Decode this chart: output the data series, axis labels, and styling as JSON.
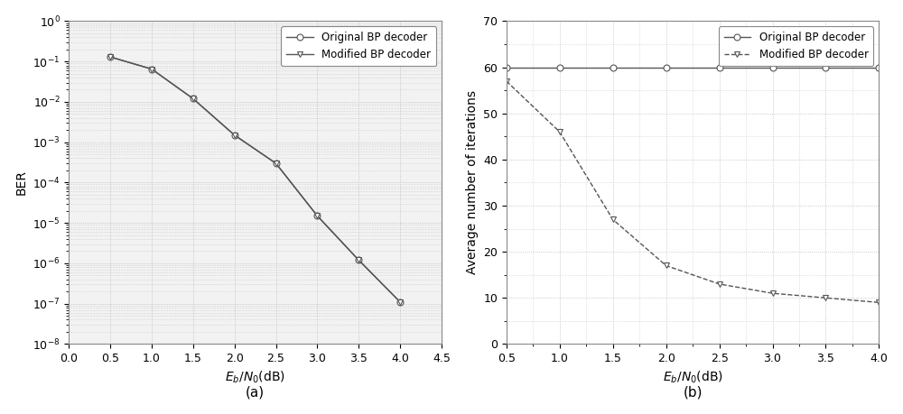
{
  "plot_a": {
    "x": [
      0.5,
      1.0,
      1.5,
      2.0,
      2.5,
      3.0,
      3.5,
      4.0
    ],
    "y_original": [
      0.13,
      0.065,
      0.012,
      0.0015,
      0.0003,
      1.5e-05,
      1.2e-06,
      1.1e-07
    ],
    "y_modified": [
      0.13,
      0.065,
      0.012,
      0.0015,
      0.0003,
      1.5e-05,
      1.2e-06,
      1.1e-07
    ],
    "xlabel": "$E_b/N_0$(dB)",
    "ylabel": "BER",
    "xlim": [
      0,
      4.5
    ],
    "ylim_log": [
      -8,
      0
    ],
    "label_a": "(a)",
    "xticks": [
      0,
      0.5,
      1.0,
      1.5,
      2.0,
      2.5,
      3.0,
      3.5,
      4.0,
      4.5
    ]
  },
  "plot_b": {
    "x": [
      0.5,
      1.0,
      1.5,
      2.0,
      2.5,
      3.0,
      3.5,
      4.0
    ],
    "y_original": [
      60,
      60,
      60,
      60,
      60,
      60,
      60,
      60
    ],
    "y_modified": [
      57,
      46,
      27,
      17,
      13,
      11,
      10,
      9
    ],
    "xlabel": "$E_b/N_0$(dB)",
    "ylabel": "Average number of iterations",
    "xlim": [
      0.5,
      4.0
    ],
    "ylim": [
      0,
      70
    ],
    "label_b": "(b)",
    "xticks": [
      0.5,
      1.0,
      1.5,
      2.0,
      2.5,
      3.0,
      3.5,
      4.0
    ],
    "yticks": [
      0,
      10,
      20,
      30,
      40,
      50,
      60,
      70
    ]
  },
  "legend_original": "Original BP decoder",
  "legend_modified": "Modified BP decoder",
  "line_color": "#555555",
  "grid_color": "#bbbbbb",
  "bg_color": "#ffffff",
  "axes_bg": "#f2f2f2"
}
